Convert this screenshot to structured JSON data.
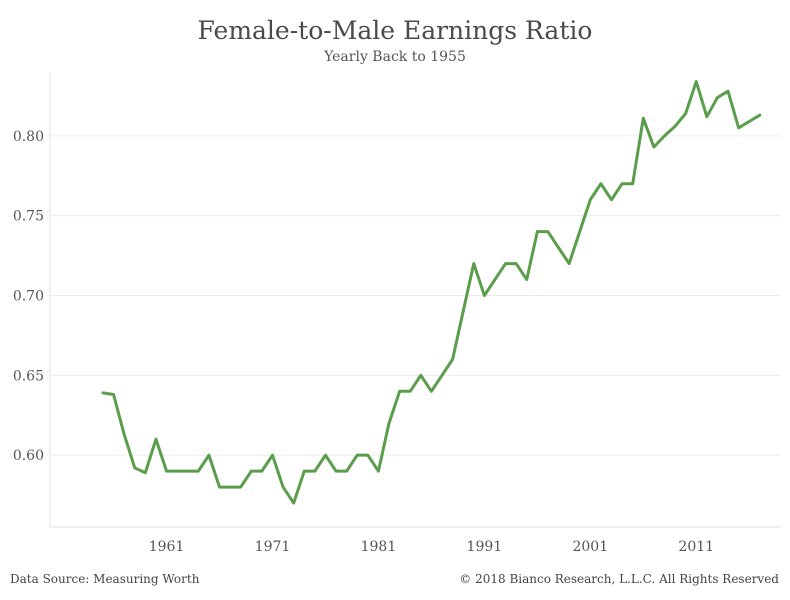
{
  "chart_data": {
    "type": "line",
    "title": "Female-to-Male Earnings Ratio",
    "subtitle": "Yearly Back to 1955",
    "xlabel": "",
    "ylabel": "",
    "x_ticks": [
      "1961",
      "1971",
      "1981",
      "1991",
      "2001",
      "2011"
    ],
    "y_ticks": [
      "0.60",
      "0.65",
      "0.70",
      "0.75",
      "0.80"
    ],
    "xlim": [
      1950,
      2019
    ],
    "ylim": [
      0.555,
      0.84
    ],
    "grid": true,
    "legend": "none",
    "series": [
      {
        "color": "#5a9e4b",
        "x": [
          1955,
          1956,
          1957,
          1958,
          1959,
          1960,
          1961,
          1962,
          1963,
          1964,
          1965,
          1966,
          1967,
          1968,
          1969,
          1970,
          1971,
          1972,
          1973,
          1974,
          1975,
          1976,
          1977,
          1978,
          1979,
          1980,
          1981,
          1982,
          1983,
          1984,
          1985,
          1986,
          1987,
          1988,
          1989,
          1990,
          1991,
          1992,
          1993,
          1994,
          1995,
          1996,
          1997,
          1998,
          1999,
          2000,
          2001,
          2002,
          2003,
          2004,
          2005,
          2006,
          2007,
          2008,
          2009,
          2010,
          2011,
          2012,
          2013,
          2014,
          2015,
          2016,
          2017
        ],
        "y": [
          0.639,
          0.638,
          0.613,
          0.592,
          0.589,
          0.61,
          0.59,
          0.59,
          0.59,
          0.59,
          0.6,
          0.58,
          0.58,
          0.58,
          0.59,
          0.59,
          0.6,
          0.58,
          0.57,
          0.59,
          0.59,
          0.6,
          0.59,
          0.59,
          0.6,
          0.6,
          0.59,
          0.62,
          0.64,
          0.64,
          0.65,
          0.64,
          0.65,
          0.66,
          0.69,
          0.72,
          0.7,
          0.71,
          0.72,
          0.72,
          0.71,
          0.74,
          0.74,
          0.73,
          0.72,
          0.74,
          0.76,
          0.77,
          0.76,
          0.77,
          0.77,
          0.811,
          0.793,
          0.8,
          0.806,
          0.814,
          0.834,
          0.812,
          0.824,
          0.828,
          0.805,
          0.809,
          0.813
        ]
      }
    ]
  },
  "footer": {
    "source": "Data Source: Measuring Worth",
    "copyright": "© 2018 Bianco Research, L.L.C. All Rights Reserved"
  }
}
